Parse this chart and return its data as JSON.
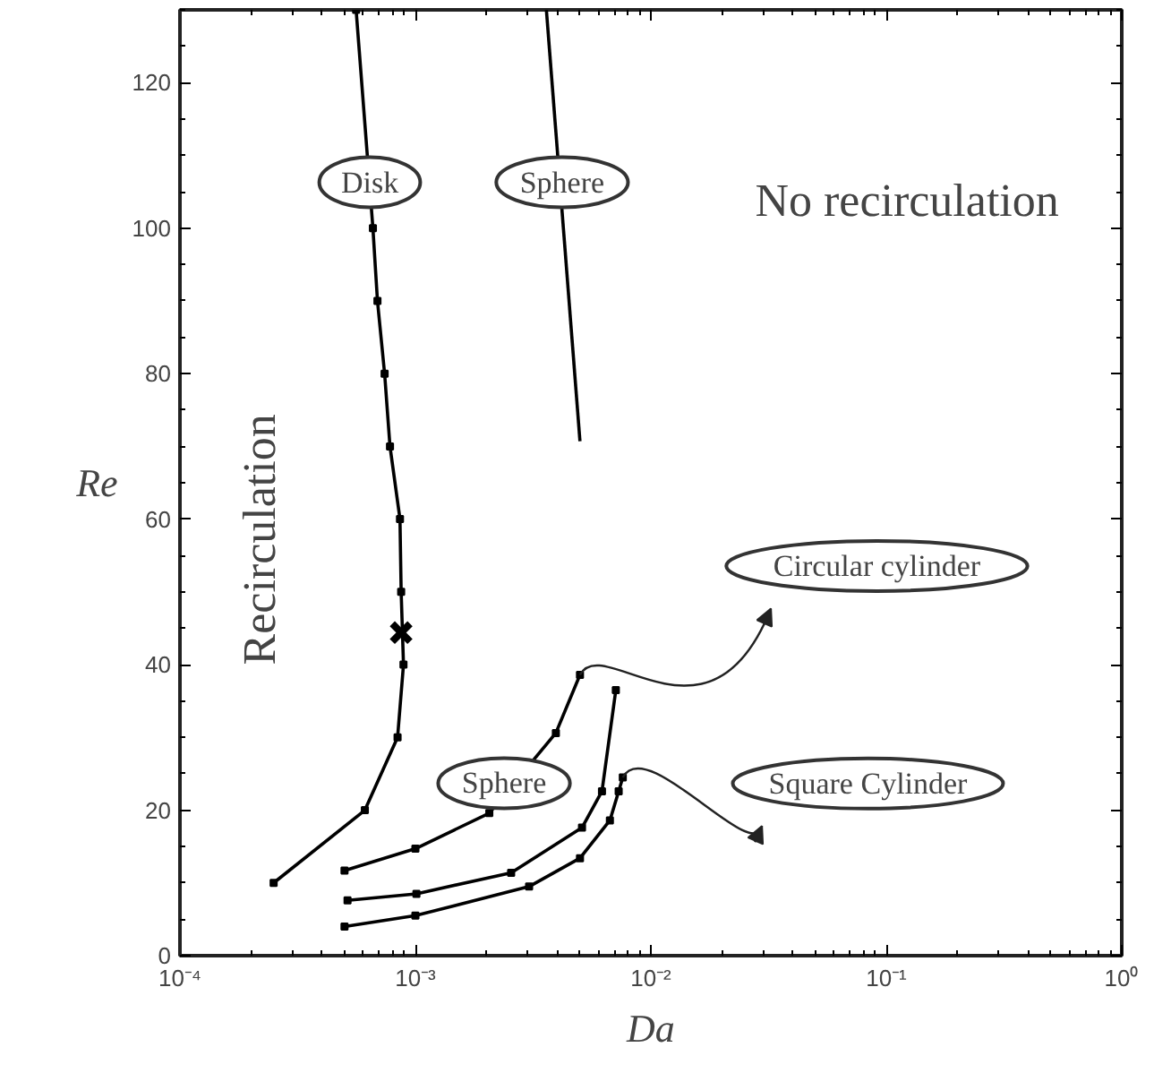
{
  "chart_data": {
    "type": "line",
    "xlabel": "Da",
    "ylabel": "Re",
    "log": "x",
    "grid": false,
    "xlim": [
      0.0001,
      1
    ],
    "ylim": [
      0,
      130
    ],
    "xticks": [
      {
        "value": 0.0001,
        "label": "10⁻⁴"
      },
      {
        "value": 0.001,
        "label": "10⁻³"
      },
      {
        "value": 0.01,
        "label": "10⁻²"
      },
      {
        "value": 0.1,
        "label": "10⁻¹"
      },
      {
        "value": 1,
        "label": "10⁰"
      }
    ],
    "yticks": [
      0,
      20,
      40,
      60,
      80,
      100,
      120
    ],
    "series": [
      {
        "color": "#000000",
        "marker": "square",
        "x": [
          0.00025,
          0.00061,
          0.00084,
          0.00089,
          0.00087,
          0.00086,
          0.00078,
          0.00074,
          0.00069,
          0.00066,
          0.00056
        ],
        "values": [
          10,
          20,
          30,
          40,
          50,
          60,
          70,
          80,
          90,
          100,
          130
        ]
      },
      {
        "color": "#000000",
        "marker": "none",
        "x": [
          0.0036,
          0.005
        ],
        "values": [
          130,
          70.7
        ]
      },
      {
        "color": "#000000",
        "marker": "square",
        "x": [
          0.0005,
          0.001,
          0.00206,
          0.00395,
          0.005
        ],
        "values": [
          11.7,
          14.7,
          19.6,
          30.6,
          38.6
        ]
      },
      {
        "color": "#000000",
        "marker": "square",
        "x": [
          0.000515,
          0.00101,
          0.00255,
          0.0051,
          0.0062,
          0.0071
        ],
        "values": [
          7.6,
          8.5,
          11.4,
          17.6,
          22.6,
          36.5
        ]
      },
      {
        "color": "#000000",
        "marker": "square",
        "x": [
          0.0005,
          0.001,
          0.00304,
          0.005,
          0.0067,
          0.0073,
          0.0076
        ],
        "values": [
          4.0,
          5.5,
          9.5,
          13.4,
          18.6,
          22.6,
          24.5
        ]
      },
      {
        "type": "scatter",
        "color": "#000000",
        "marker": "cross",
        "x": [
          0.00087
        ],
        "values": [
          44.4
        ]
      }
    ],
    "annotations": [
      {
        "text": "Disk",
        "x": 0.00064,
        "y": 106.3
      },
      {
        "text": "Sphere",
        "x": 0.0042,
        "y": 106.3
      },
      {
        "text": "Sphere",
        "x": 0.00238,
        "y": 23.7
      },
      "Circular cylinder",
      "Square Cylinder",
      "No recirculation",
      "Recirculation"
    ]
  }
}
